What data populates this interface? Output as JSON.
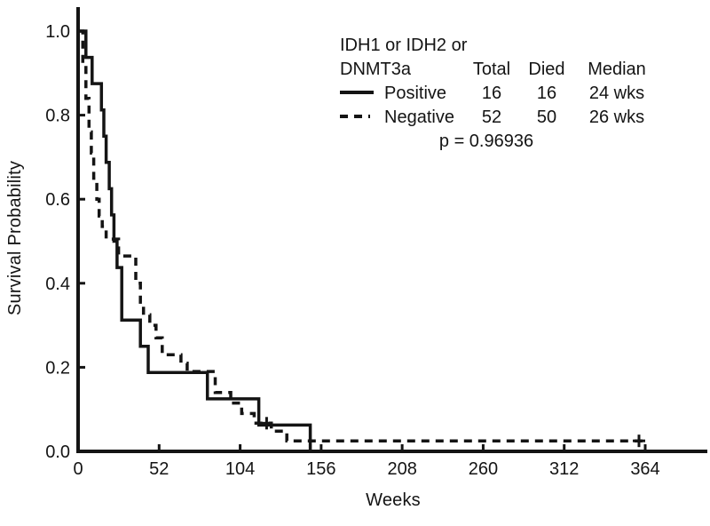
{
  "chart_data": {
    "type": "line",
    "subtype": "kaplan-meier-step",
    "title": "",
    "xlabel": "Weeks",
    "ylabel": "Survival Probability",
    "xlim": [
      0,
      403
    ],
    "ylim": [
      0,
      1.0
    ],
    "x_ticks": [
      0,
      52,
      104,
      156,
      208,
      260,
      312,
      364
    ],
    "y_ticks": [
      "0.0",
      "0.2",
      "0.4",
      "0.6",
      "0.8",
      "1.0"
    ],
    "grid": "off",
    "legend_position": "top-center-inside",
    "colors": {
      "foreground": "#141414",
      "background": "#ffffff"
    },
    "legend": {
      "header_line1": "IDH1 or IDH2 or",
      "header_line2": "DNMT3a",
      "col_total": "Total",
      "col_died": "Died",
      "col_median": "Median",
      "rows": [
        {
          "label": "Positive",
          "line_style": "solid",
          "total": 16,
          "died": 16,
          "median": "24 wks"
        },
        {
          "label": "Negative",
          "line_style": "dashed",
          "total": 52,
          "died": 50,
          "median": "26 wks"
        }
      ],
      "p_value": "p = 0.96936"
    },
    "series": [
      {
        "name": "Positive",
        "style": "solid",
        "points": [
          [
            0,
            1
          ],
          [
            5,
            1
          ],
          [
            5,
            0.9375
          ],
          [
            9,
            0.9375
          ],
          [
            9,
            0.875
          ],
          [
            15,
            0.875
          ],
          [
            15,
            0.8125
          ],
          [
            16.5,
            0.8125
          ],
          [
            16.5,
            0.75
          ],
          [
            18,
            0.75
          ],
          [
            18,
            0.6875
          ],
          [
            20,
            0.6875
          ],
          [
            20,
            0.625
          ],
          [
            21.5,
            0.625
          ],
          [
            21.5,
            0.5625
          ],
          [
            23,
            0.5625
          ],
          [
            23,
            0.5
          ],
          [
            25,
            0.5
          ],
          [
            25,
            0.4375
          ],
          [
            28,
            0.4375
          ],
          [
            28,
            0.3125
          ],
          [
            40,
            0.3125
          ],
          [
            40,
            0.25
          ],
          [
            45,
            0.25
          ],
          [
            45,
            0.1875
          ],
          [
            83,
            0.1875
          ],
          [
            83,
            0.125
          ],
          [
            116,
            0.125
          ],
          [
            116,
            0.0625
          ],
          [
            149,
            0.0625
          ],
          [
            149,
            0
          ]
        ],
        "censors": []
      },
      {
        "name": "Negative",
        "style": "dashed",
        "points": [
          [
            0,
            1
          ],
          [
            3,
            1
          ],
          [
            3,
            0.92
          ],
          [
            5,
            0.92
          ],
          [
            5,
            0.84
          ],
          [
            7,
            0.84
          ],
          [
            7,
            0.76
          ],
          [
            8.5,
            0.76
          ],
          [
            8.5,
            0.71
          ],
          [
            10,
            0.71
          ],
          [
            10,
            0.65
          ],
          [
            12,
            0.65
          ],
          [
            12,
            0.6
          ],
          [
            13.5,
            0.6
          ],
          [
            13.5,
            0.56
          ],
          [
            15.5,
            0.56
          ],
          [
            15.5,
            0.535
          ],
          [
            18,
            0.535
          ],
          [
            18,
            0.505
          ],
          [
            26,
            0.505
          ],
          [
            26,
            0.465
          ],
          [
            37,
            0.465
          ],
          [
            37,
            0.4
          ],
          [
            40,
            0.4
          ],
          [
            40,
            0.355
          ],
          [
            42,
            0.355
          ],
          [
            42,
            0.325
          ],
          [
            46,
            0.325
          ],
          [
            46,
            0.3
          ],
          [
            50,
            0.3
          ],
          [
            50,
            0.27
          ],
          [
            54,
            0.27
          ],
          [
            54,
            0.23
          ],
          [
            66,
            0.23
          ],
          [
            66,
            0.21
          ],
          [
            70,
            0.21
          ],
          [
            70,
            0.19
          ],
          [
            88,
            0.19
          ],
          [
            88,
            0.14
          ],
          [
            98,
            0.14
          ],
          [
            98,
            0.115
          ],
          [
            105,
            0.115
          ],
          [
            105,
            0.09
          ],
          [
            113,
            0.09
          ],
          [
            113,
            0.067
          ],
          [
            124,
            0.067
          ],
          [
            124,
            0.048
          ],
          [
            134,
            0.048
          ],
          [
            134,
            0.025
          ],
          [
            364,
            0.025
          ]
        ],
        "censors": [
          [
            121,
            0.067
          ],
          [
            360,
            0.025
          ]
        ]
      }
    ]
  }
}
